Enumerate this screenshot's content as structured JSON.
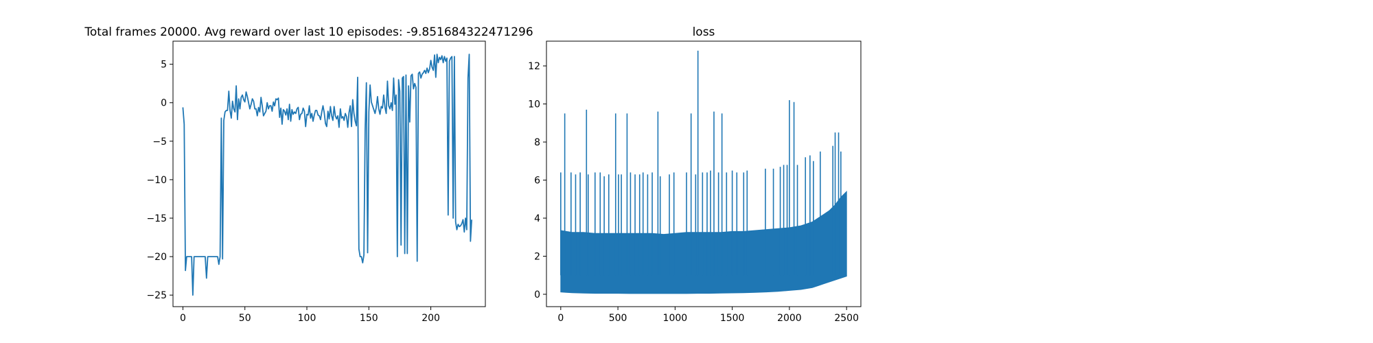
{
  "chart_data": [
    {
      "type": "line",
      "title": "Total frames 20000. Avg reward over last 10 episodes: -9.851684322471296",
      "xlabel": "",
      "ylabel": "",
      "xlim": [
        -8,
        244
      ],
      "ylim": [
        -26.5,
        8
      ],
      "xticks": [
        0,
        50,
        100,
        150,
        200
      ],
      "yticks": [
        5,
        0,
        -5,
        -10,
        -15,
        -20,
        -25
      ],
      "grid": false,
      "color": "#1f77b4",
      "series": [
        {
          "values": [
            -0.6,
            -2.8,
            -21.8,
            -20.0,
            -20.0,
            -20.0,
            -20.0,
            -20.0,
            -25.0,
            -20.0,
            -20.0,
            -20.0,
            -20.0,
            -20.0,
            -20.0,
            -20.0,
            -20.0,
            -20.0,
            -20.0,
            -22.8,
            -20.0,
            -20.0,
            -20.0,
            -20.0,
            -20.0,
            -20.0,
            -20.0,
            -20.0,
            -20.0,
            -21.0,
            -20.0,
            -2.0,
            -20.3,
            -2.3,
            -1.2,
            -1.0,
            -1.0,
            1.5,
            -1.0,
            -2.0,
            0.2,
            -0.8,
            -1.2,
            2.2,
            -2.2,
            0.5,
            -0.8,
            0.7,
            1.0,
            0.4,
            0.1,
            1.4,
            0.8,
            0.0,
            -0.8,
            -0.2,
            0.5,
            0.2,
            -0.8,
            -0.8,
            -1.7,
            -0.6,
            -1.2,
            0.7,
            -0.4,
            -1.7,
            -1.4,
            -1.1,
            0.0,
            -0.8,
            -0.4,
            -0.4,
            -1.1,
            0.1,
            -0.4,
            0.5,
            0.4,
            0.6,
            -1.9,
            -0.7,
            -2.8,
            -0.9,
            -1.1,
            -1.6,
            -0.8,
            -2.2,
            -0.2,
            -2.4,
            -0.9,
            -1.5,
            -1.2,
            -1.4,
            -0.8,
            -0.6,
            -2.2,
            -1.5,
            -1.4,
            -0.7,
            -1.1,
            -3.1,
            -1.5,
            -1.6,
            -0.4,
            -2.0,
            -1.4,
            -2.4,
            -1.6,
            -1.0,
            -1.0,
            -1.6,
            -1.7,
            -2.2,
            -1.2,
            -0.4,
            -1.3,
            -2.7,
            -3.1,
            -1.1,
            -2.1,
            -0.5,
            -1.7,
            -2.3,
            -0.5,
            -1.7,
            -2.1,
            -1.7,
            -3.2,
            -0.8,
            -2.0,
            -1.8,
            -2.3,
            -1.4,
            -1.8,
            -3.2,
            -1.3,
            -0.4,
            -3.1,
            0.4,
            -1.4,
            -2.4,
            -3.0,
            3.3,
            -19.0,
            -20.0,
            -20.0,
            -20.8,
            -19.8,
            -3.5,
            2.6,
            -19.5,
            -1.2,
            2.3,
            0.1,
            -0.4,
            -0.9,
            -1.4,
            -0.6,
            0.8,
            -0.8,
            -1.5,
            -0.5,
            -0.7,
            1.0,
            -0.6,
            -1.4,
            2.8,
            -0.4,
            -0.8,
            0.0,
            -1.0,
            3.2,
            -0.2,
            1.0,
            -20.0,
            3.0,
            1.5,
            -18.5,
            3.2,
            3.4,
            -19.6,
            3.6,
            -19.6,
            2.2,
            -2.5,
            3.5,
            3.7,
            1.8,
            2.5,
            2.0,
            -20.6,
            3.8,
            4.0,
            3.2,
            3.7,
            3.9,
            4.2,
            3.8,
            4.5,
            3.9,
            4.4,
            5.5,
            4.6,
            4.2,
            6.2,
            3.3,
            6.3,
            5.2,
            5.9,
            5.6,
            6.1,
            5.2,
            6.0,
            5.4,
            5.8,
            -14.6,
            5.4,
            5.8,
            6.0,
            -15.0,
            6.0,
            -15.5,
            -16.5,
            -15.8,
            -16.1,
            -16.0,
            -15.7,
            -15.2,
            -16.8,
            -15.0,
            -16.5,
            3.2,
            6.3,
            -18.0,
            -15.2
          ]
        }
      ]
    },
    {
      "type": "area",
      "title": "loss",
      "xlabel": "",
      "ylabel": "",
      "xlim": [
        -125,
        2625
      ],
      "ylim": [
        -0.65,
        13.3
      ],
      "xticks": [
        0,
        500,
        1000,
        1500,
        2000,
        2500
      ],
      "yticks": [
        12,
        10,
        8,
        6,
        4,
        2,
        0
      ],
      "grid": false,
      "color": "#1f77b4",
      "series": [
        {
          "name": "",
          "x": [
            0,
            50,
            100,
            200,
            300,
            400,
            500,
            600,
            700,
            800,
            900,
            1000,
            1100,
            1200,
            1300,
            1400,
            1500,
            1600,
            1700,
            1800,
            1900,
            2000,
            2100,
            2150,
            2200,
            2250,
            2300,
            2350,
            2400,
            2450,
            2500
          ],
          "lower": [
            0.12,
            0.1,
            0.08,
            0.06,
            0.05,
            0.05,
            0.05,
            0.04,
            0.04,
            0.04,
            0.04,
            0.04,
            0.04,
            0.05,
            0.05,
            0.06,
            0.07,
            0.08,
            0.1,
            0.12,
            0.15,
            0.2,
            0.25,
            0.3,
            0.35,
            0.45,
            0.55,
            0.65,
            0.75,
            0.85,
            0.95
          ],
          "upper": [
            3.35,
            3.3,
            3.25,
            3.25,
            3.2,
            3.2,
            3.2,
            3.2,
            3.2,
            3.2,
            3.15,
            3.2,
            3.25,
            3.25,
            3.25,
            3.25,
            3.3,
            3.3,
            3.35,
            3.4,
            3.45,
            3.5,
            3.6,
            3.7,
            3.8,
            4.0,
            4.2,
            4.4,
            4.7,
            5.1,
            5.4
          ],
          "spikes": [
            {
              "x": 0,
              "y": 6.4
            },
            {
              "x": 35,
              "y": 9.5
            },
            {
              "x": 90,
              "y": 6.4
            },
            {
              "x": 130,
              "y": 6.3
            },
            {
              "x": 170,
              "y": 6.4
            },
            {
              "x": 225,
              "y": 9.7
            },
            {
              "x": 240,
              "y": 6.3
            },
            {
              "x": 300,
              "y": 6.4
            },
            {
              "x": 345,
              "y": 6.4
            },
            {
              "x": 380,
              "y": 6.2
            },
            {
              "x": 420,
              "y": 6.3
            },
            {
              "x": 480,
              "y": 9.5
            },
            {
              "x": 505,
              "y": 6.3
            },
            {
              "x": 530,
              "y": 6.3
            },
            {
              "x": 580,
              "y": 9.5
            },
            {
              "x": 610,
              "y": 6.4
            },
            {
              "x": 650,
              "y": 6.3
            },
            {
              "x": 690,
              "y": 6.3
            },
            {
              "x": 720,
              "y": 6.4
            },
            {
              "x": 760,
              "y": 6.3
            },
            {
              "x": 800,
              "y": 6.4
            },
            {
              "x": 850,
              "y": 9.6
            },
            {
              "x": 870,
              "y": 6.2
            },
            {
              "x": 950,
              "y": 6.3
            },
            {
              "x": 990,
              "y": 6.4
            },
            {
              "x": 1100,
              "y": 6.4
            },
            {
              "x": 1140,
              "y": 9.5
            },
            {
              "x": 1180,
              "y": 6.3
            },
            {
              "x": 1200,
              "y": 12.8
            },
            {
              "x": 1240,
              "y": 6.4
            },
            {
              "x": 1280,
              "y": 6.4
            },
            {
              "x": 1310,
              "y": 6.5
            },
            {
              "x": 1340,
              "y": 9.6
            },
            {
              "x": 1380,
              "y": 6.4
            },
            {
              "x": 1410,
              "y": 9.5
            },
            {
              "x": 1450,
              "y": 6.4
            },
            {
              "x": 1500,
              "y": 6.5
            },
            {
              "x": 1540,
              "y": 6.4
            },
            {
              "x": 1600,
              "y": 6.4
            },
            {
              "x": 1630,
              "y": 6.5
            },
            {
              "x": 1790,
              "y": 6.6
            },
            {
              "x": 1860,
              "y": 6.6
            },
            {
              "x": 1920,
              "y": 6.7
            },
            {
              "x": 1950,
              "y": 6.8
            },
            {
              "x": 1980,
              "y": 6.8
            },
            {
              "x": 2000,
              "y": 10.2
            },
            {
              "x": 2040,
              "y": 10.1
            },
            {
              "x": 2070,
              "y": 6.8
            },
            {
              "x": 2140,
              "y": 7.2
            },
            {
              "x": 2180,
              "y": 7.3
            },
            {
              "x": 2210,
              "y": 7.0
            },
            {
              "x": 2270,
              "y": 7.5
            },
            {
              "x": 2380,
              "y": 7.8
            },
            {
              "x": 2400,
              "y": 8.5
            },
            {
              "x": 2430,
              "y": 8.5
            },
            {
              "x": 2450,
              "y": 7.5
            }
          ]
        }
      ]
    }
  ]
}
